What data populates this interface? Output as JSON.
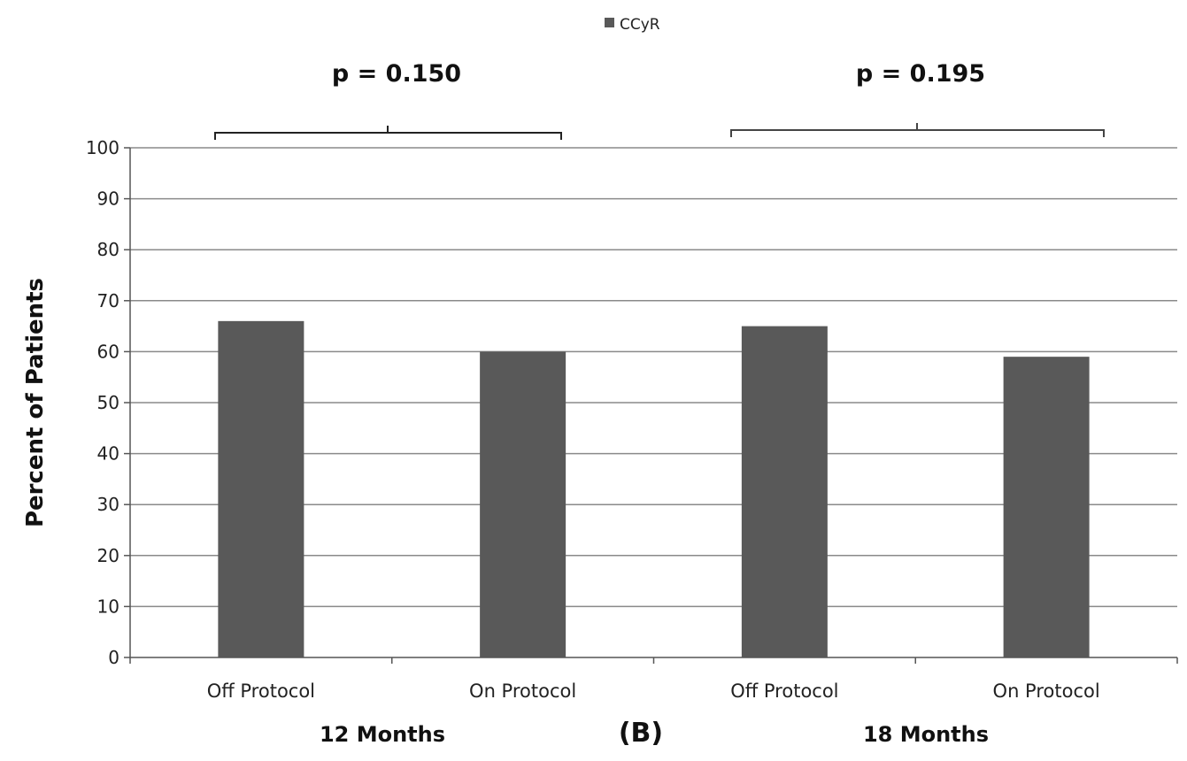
{
  "chart_data": {
    "type": "bar",
    "categories": [
      "Off Protocol",
      "On Protocol",
      "Off Protocol",
      "On Protocol"
    ],
    "groups": [
      "12 Months",
      "18 Months"
    ],
    "series": [
      {
        "name": "CCyR",
        "values": [
          66,
          60,
          65,
          59
        ],
        "color": "#595959"
      }
    ],
    "ylabel": "Percent of Patients",
    "ylim": [
      0,
      100
    ],
    "yticks": [
      0,
      10,
      20,
      30,
      40,
      50,
      60,
      70,
      80,
      90,
      100
    ],
    "grid": true,
    "legend": "top-center",
    "panel_label": "(B)",
    "annotations": [
      "p = 0.150",
      "p = 0.195"
    ]
  }
}
